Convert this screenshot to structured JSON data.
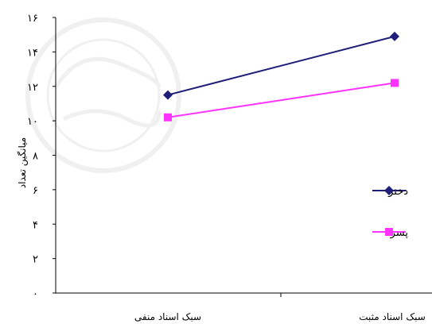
{
  "chart_data": {
    "type": "line",
    "categories": [
      "سبک اسناد منفی",
      "سبک اسناد مثبت"
    ],
    "ylabel": "میانگین تعداد",
    "ylim": [
      0,
      16
    ],
    "yticks": [
      "۰",
      "۲",
      "۴",
      "۶",
      "۸",
      "۱۰",
      "۱۲",
      "۱۴",
      "۱۶"
    ],
    "grid": false,
    "legend_position": "right",
    "series": [
      {
        "name": "دختر",
        "values": [
          11.5,
          14.9
        ],
        "color": "#1f1f7a",
        "marker": "diamond"
      },
      {
        "name": "پسر",
        "values": [
          10.2,
          12.2
        ],
        "color": "#ff33ff",
        "marker": "square"
      }
    ]
  }
}
